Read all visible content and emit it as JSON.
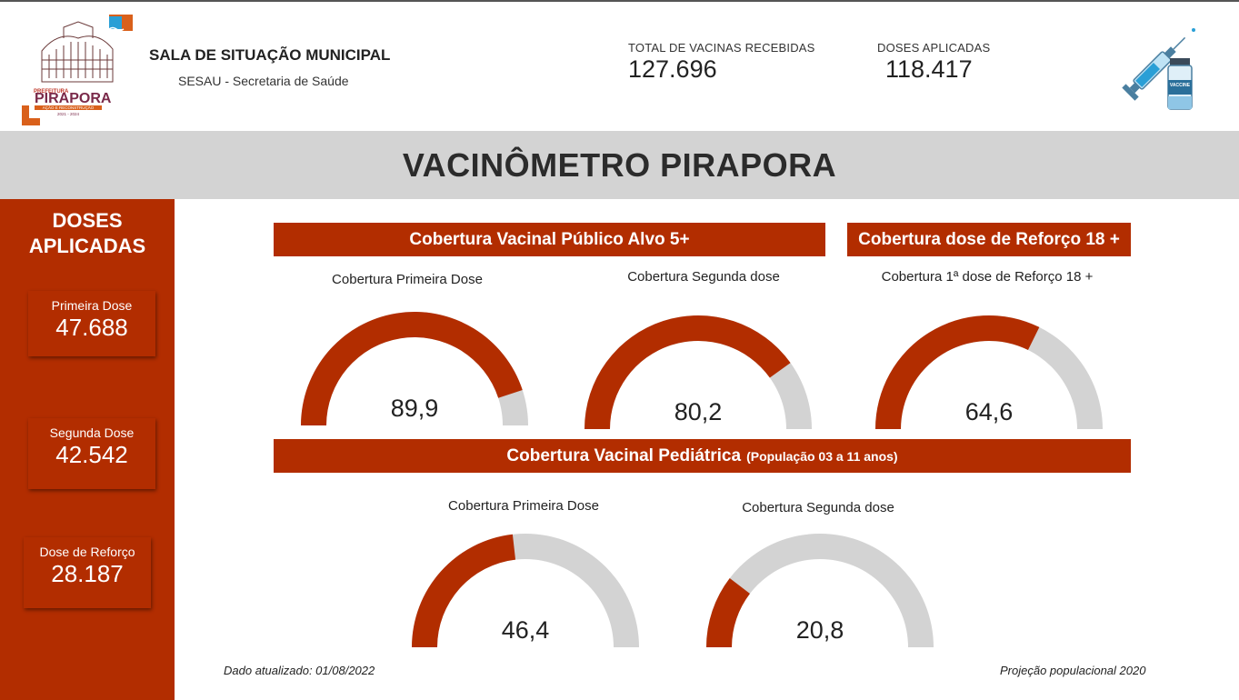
{
  "header": {
    "logo_text": "PIRAPORA",
    "logo_tagline": "AÇÃO E RECONSTRUÇÃO",
    "logo_years": "2021 - 2024",
    "logo_prefix": "PREFEITURA",
    "title": "SALA DE SITUAÇÃO MUNICIPAL",
    "subtitle": "SESAU - Secretaria de Saúde",
    "kpis": [
      {
        "label": "TOTAL DE VACINAS RECEBIDAS",
        "value": "127.696"
      },
      {
        "label": "DOSES APLICADAS",
        "value": "118.417"
      }
    ],
    "vaccine_label": "VACCINE"
  },
  "banner": {
    "title": "VACINÔMETRO PIRAPORA"
  },
  "sidebar": {
    "title_line1": "DOSES",
    "title_line2": "APLICADAS",
    "cards": [
      {
        "label": "Primeira Dose",
        "value": "47.688"
      },
      {
        "label": "Segunda Dose",
        "value": "42.542"
      },
      {
        "label": "Dose de Reforço",
        "value": "28.187"
      }
    ]
  },
  "sections": {
    "publico_alvo": "Cobertura Vacinal Público Alvo 5+",
    "reforco": "Cobertura dose de Reforço 18 +",
    "pediatrica": "Cobertura Vacinal Pediátrica",
    "pediatrica_note": "(População 03 a 11 anos)"
  },
  "gauges": [
    {
      "title": "Cobertura Primeira Dose",
      "value": 89.9,
      "display": "89,9"
    },
    {
      "title": "Cobertura Segunda dose",
      "value": 80.2,
      "display": "80,2"
    },
    {
      "title": "Cobertura 1ª dose de Reforço 18 +",
      "value": 64.6,
      "display": "64,6"
    },
    {
      "title": "Cobertura Primeira Dose",
      "value": 46.4,
      "display": "46,4"
    },
    {
      "title": "Cobertura Segunda dose",
      "value": 20.8,
      "display": "20,8"
    }
  ],
  "gauge_colors": {
    "fill": "#b22d00",
    "track": "#d3d3d3"
  },
  "footer": {
    "updated": "Dado atualizado: 01/08/2022",
    "projection": "Projeção populacional 2020"
  }
}
